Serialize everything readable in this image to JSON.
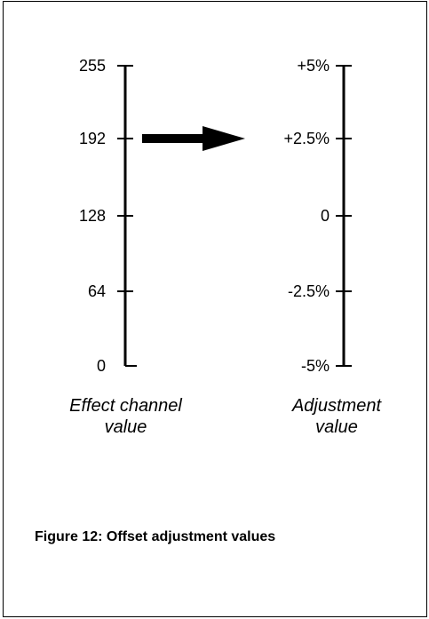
{
  "left_scale": {
    "ticks": [
      "255",
      "192",
      "128",
      "64",
      "0"
    ],
    "caption_line1": "Effect channel",
    "caption_line2": "value"
  },
  "right_scale": {
    "ticks": [
      "+5%",
      "+2.5%",
      "0",
      "-2.5%",
      "-5%"
    ],
    "caption_line1": "Adjustment",
    "caption_line2": "value"
  },
  "mapping_arrow": {
    "from": "192",
    "to": "+2.5%"
  },
  "figure_caption": "Figure 12: Offset adjustment values"
}
